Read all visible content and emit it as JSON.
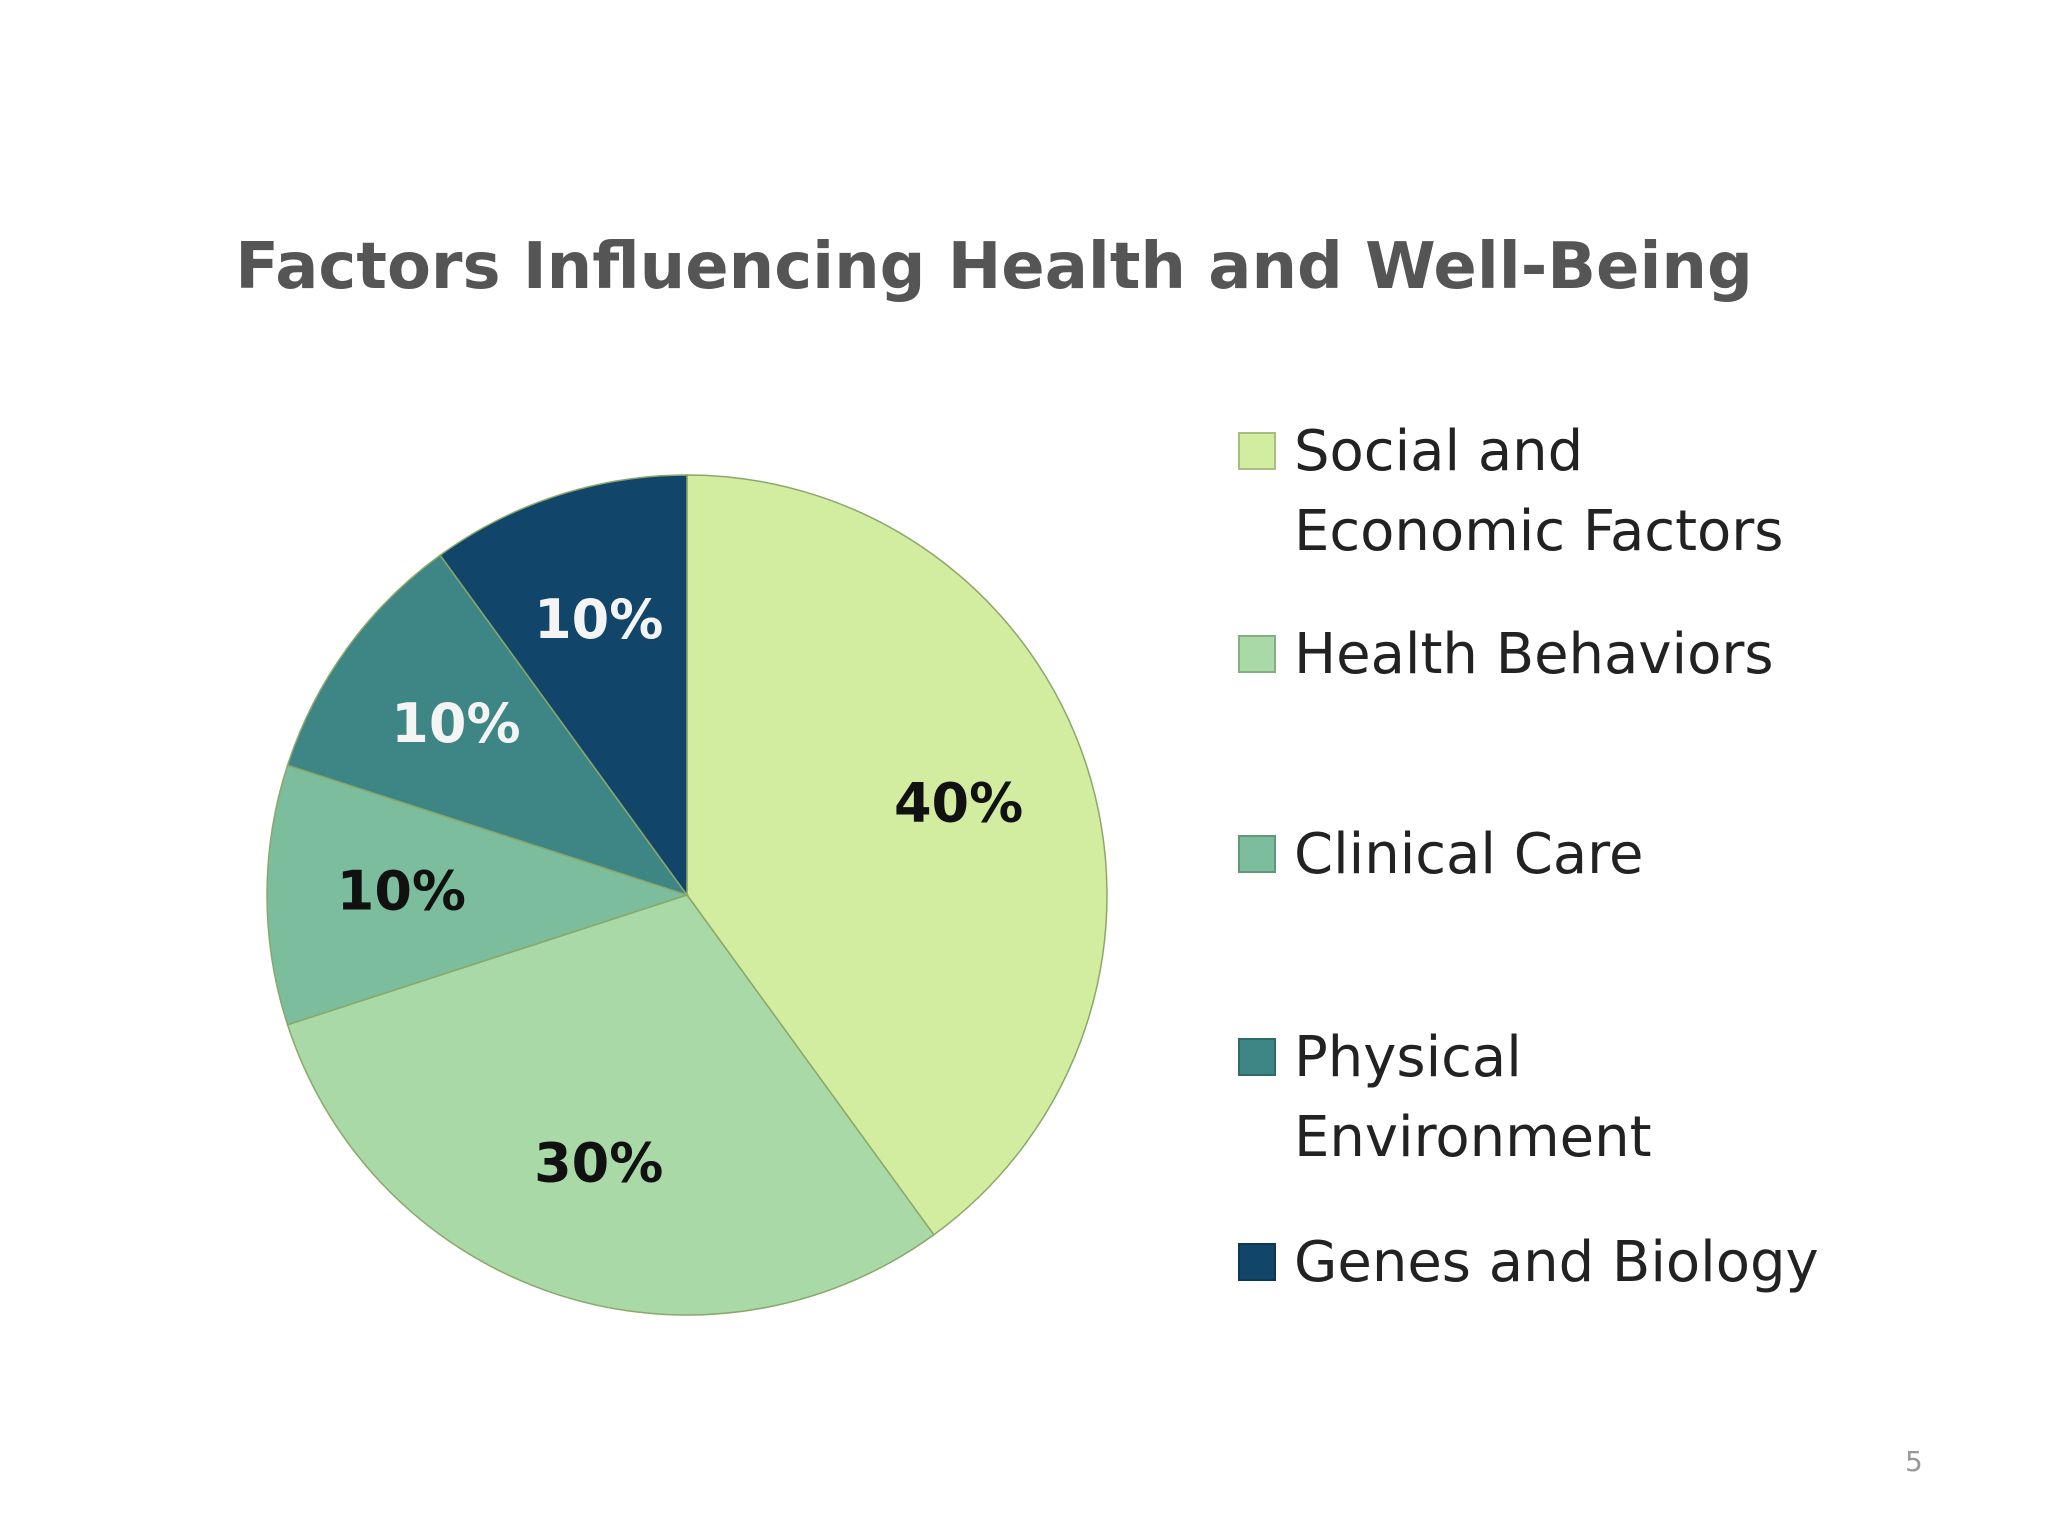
{
  "chart_data": {
    "type": "pie",
    "title": "Factors Influencing Health and Well-Being",
    "categories": [
      "Social and Economic Factors",
      "Health Behaviors",
      "Clinical Care",
      "Physical Environment",
      "Genes and Biology"
    ],
    "values": [
      40,
      30,
      10,
      10,
      10
    ],
    "value_labels": [
      "40%",
      "30%",
      "10%",
      "10%",
      "10%"
    ],
    "colors": [
      "#d2eda0",
      "#a8d9a6",
      "#7bbd9c",
      "#3e8585",
      "#11466a"
    ],
    "legend": "right"
  },
  "page_number": "5"
}
